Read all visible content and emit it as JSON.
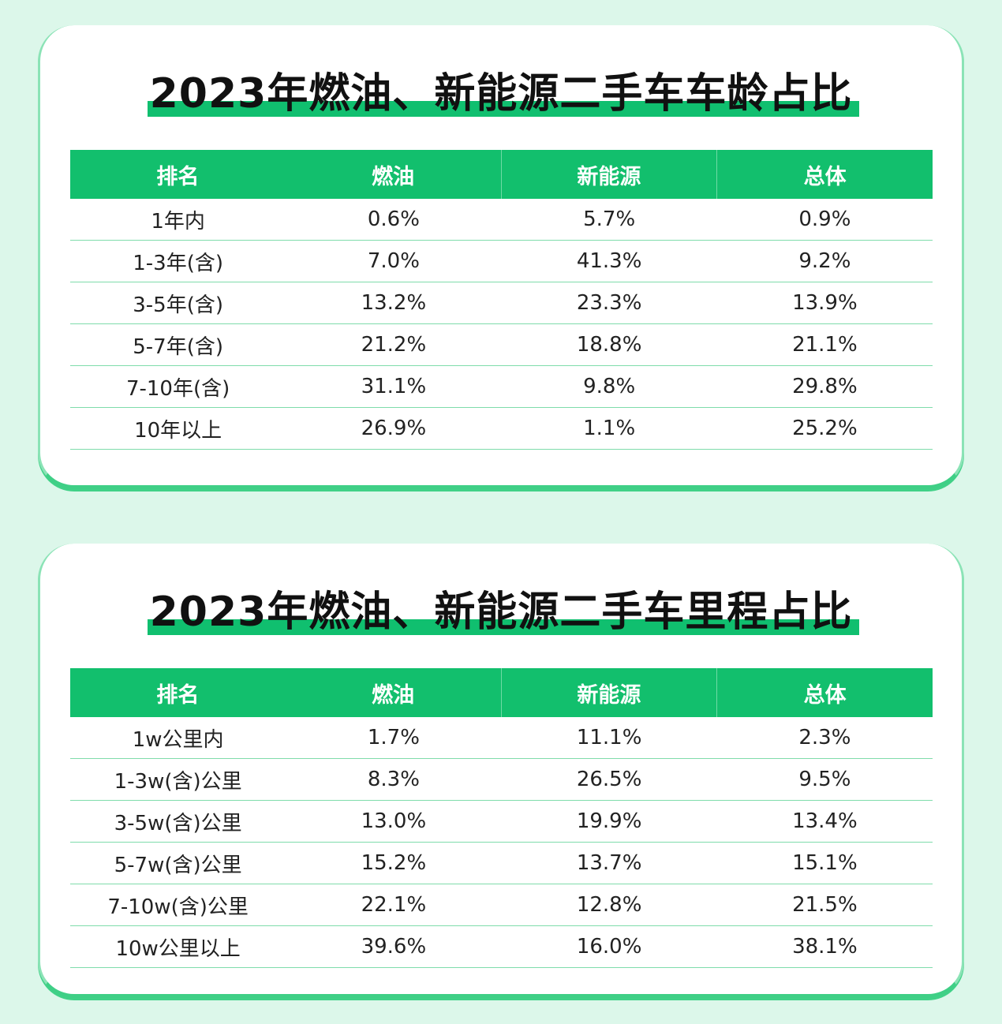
{
  "tables": [
    {
      "title": "2023年燃油、新能源二手车车龄占比",
      "headers": [
        "排名",
        "燃油",
        "新能源",
        "总体"
      ],
      "rows": [
        [
          "1年内",
          "0.6%",
          "5.7%",
          "0.9%"
        ],
        [
          "1-3年(含)",
          "7.0%",
          "41.3%",
          "9.2%"
        ],
        [
          "3-5年(含)",
          "13.2%",
          "23.3%",
          "13.9%"
        ],
        [
          "5-7年(含)",
          "21.2%",
          "18.8%",
          "21.1%"
        ],
        [
          "7-10年(含)",
          "31.1%",
          "9.8%",
          "29.8%"
        ],
        [
          "10年以上",
          "26.9%",
          "1.1%",
          "25.2%"
        ]
      ]
    },
    {
      "title": "2023年燃油、新能源二手车里程占比",
      "headers": [
        "排名",
        "燃油",
        "新能源",
        "总体"
      ],
      "rows": [
        [
          "1w公里内",
          "1.7%",
          "11.1%",
          "2.3%"
        ],
        [
          "1-3w(含)公里",
          "8.3%",
          "26.5%",
          "9.5%"
        ],
        [
          "3-5w(含)公里",
          "13.0%",
          "19.9%",
          "13.4%"
        ],
        [
          "5-7w(含)公里",
          "15.2%",
          "13.7%",
          "15.1%"
        ],
        [
          "7-10w(含)公里",
          "22.1%",
          "12.8%",
          "21.5%"
        ],
        [
          "10w公里以上",
          "39.6%",
          "16.0%",
          "38.1%"
        ]
      ]
    }
  ],
  "colors": {
    "page_background": "#dcf7ea",
    "accent_green": "#12bf6d",
    "card_background": "#ffffff"
  }
}
